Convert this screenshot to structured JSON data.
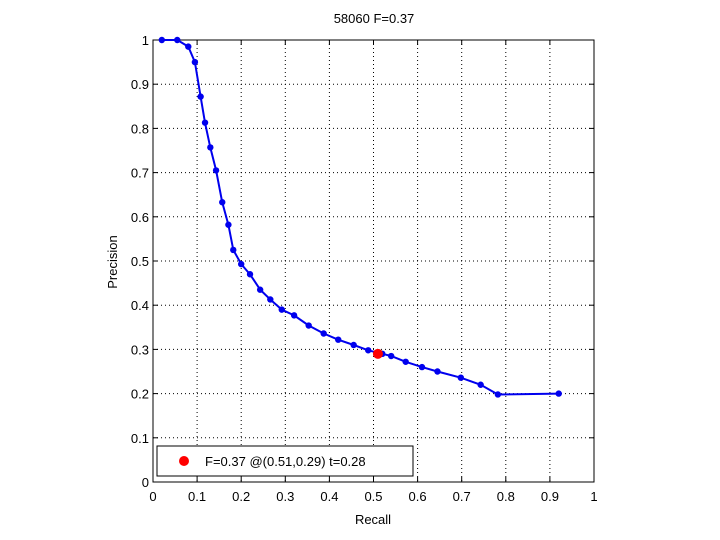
{
  "chart_data": {
    "type": "line",
    "title": "58060 F=0.37",
    "xlabel": "Recall",
    "ylabel": "Precision",
    "xlim": [
      0,
      1
    ],
    "ylim": [
      0,
      1
    ],
    "xticks": [
      0,
      0.1,
      0.2,
      0.3,
      0.4,
      0.5,
      0.6,
      0.7,
      0.8,
      0.9,
      1
    ],
    "yticks": [
      0,
      0.1,
      0.2,
      0.3,
      0.4,
      0.5,
      0.6,
      0.7,
      0.8,
      0.9,
      1
    ],
    "xtick_labels": [
      "0",
      "0.1",
      "0.2",
      "0.3",
      "0.4",
      "0.5",
      "0.6",
      "0.7",
      "0.8",
      "0.9",
      "1"
    ],
    "ytick_labels": [
      "0",
      "0.1",
      "0.2",
      "0.3",
      "0.4",
      "0.5",
      "0.6",
      "0.7",
      "0.8",
      "0.9",
      "1"
    ],
    "grid": true,
    "grid_style": "dotted",
    "series": [
      {
        "color": "#0000ee",
        "marker": "dot",
        "x": [
          0.02,
          0.055,
          0.08,
          0.095,
          0.108,
          0.118,
          0.13,
          0.143,
          0.157,
          0.171,
          0.182,
          0.2,
          0.22,
          0.243,
          0.266,
          0.292,
          0.32,
          0.353,
          0.387,
          0.42,
          0.455,
          0.488,
          0.52,
          0.54,
          0.573,
          0.61,
          0.645,
          0.698,
          0.743,
          0.782,
          0.92
        ],
        "y": [
          1.0,
          1.0,
          0.985,
          0.95,
          0.872,
          0.813,
          0.757,
          0.705,
          0.633,
          0.582,
          0.525,
          0.493,
          0.47,
          0.435,
          0.413,
          0.39,
          0.377,
          0.354,
          0.336,
          0.322,
          0.31,
          0.298,
          0.29,
          0.285,
          0.272,
          0.26,
          0.25,
          0.236,
          0.22,
          0.198,
          0.2
        ]
      }
    ],
    "highlight": {
      "x": 0.51,
      "y": 0.29,
      "color": "#ff0000"
    },
    "legend": {
      "position": "bottom-left",
      "entries": [
        {
          "label": "F=0.37 @(0.51,0.29) t=0.28",
          "color": "#ff0000"
        }
      ]
    }
  }
}
